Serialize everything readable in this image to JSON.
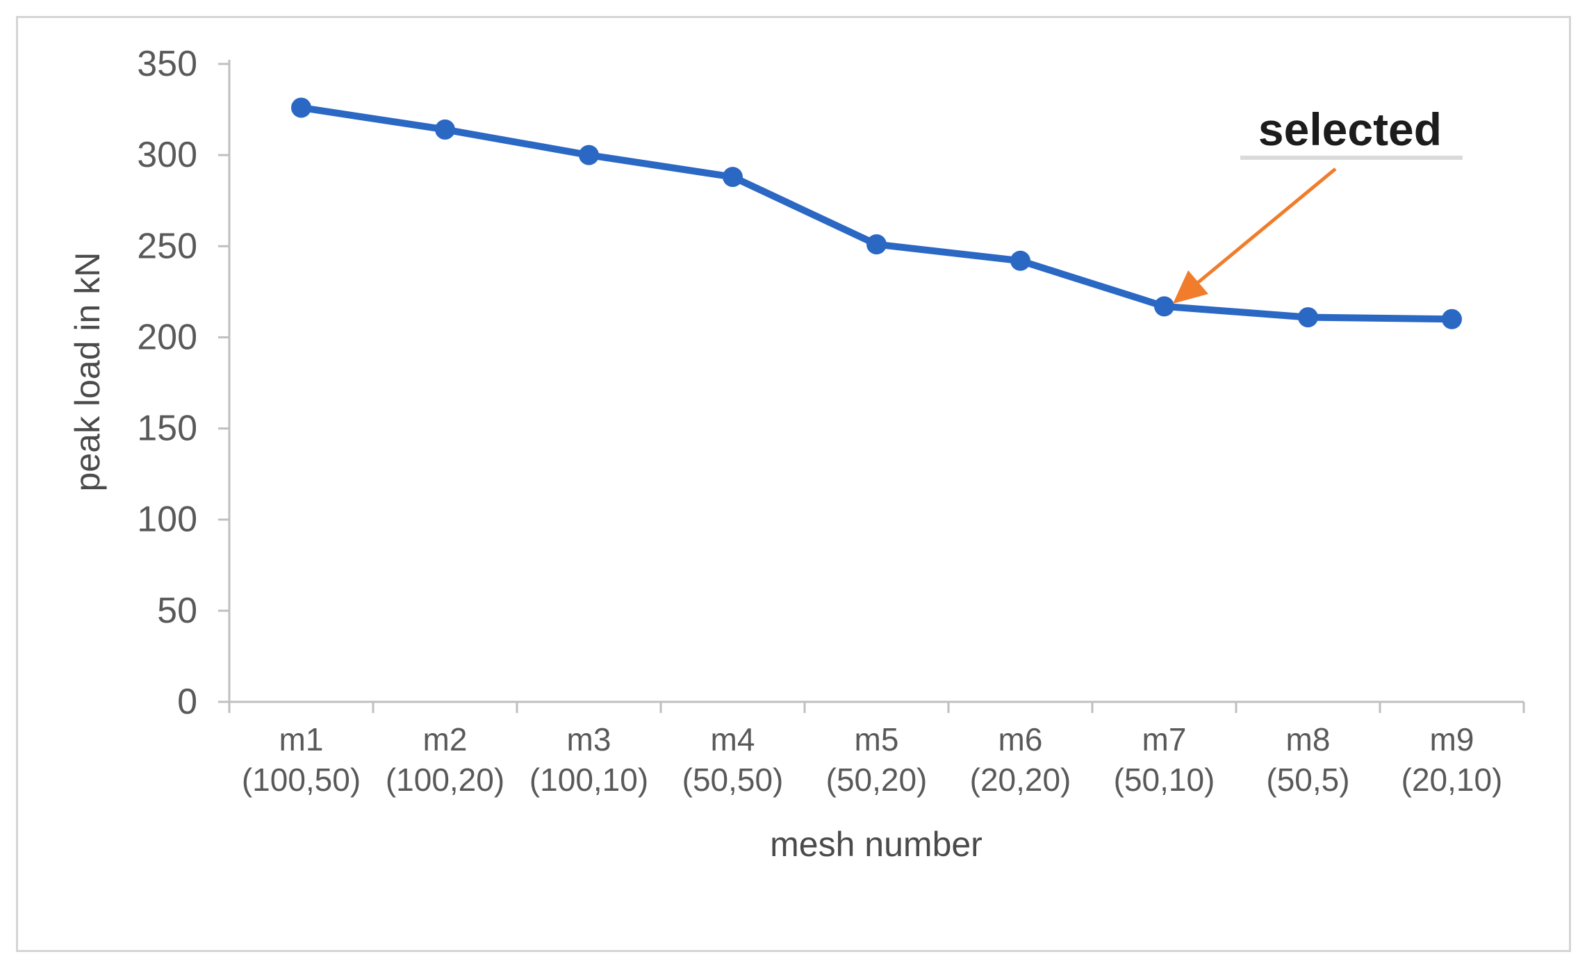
{
  "figure": {
    "background": "#ffffff",
    "border_color": "#d4d4d4"
  },
  "chart_data": {
    "type": "line",
    "title": "",
    "categories": [
      "m1",
      "m2",
      "m3",
      "m4",
      "m5",
      "m6",
      "m7",
      "m8",
      "m9"
    ],
    "category_sublabels": [
      "(100,50)",
      "(100,20)",
      "(100,10)",
      "(50,50)",
      "(50,20)",
      "(20,20)",
      "(50,10)",
      "(50,5)",
      "(20,10)"
    ],
    "values": [
      326,
      314,
      300,
      288,
      251,
      242,
      217,
      211,
      210
    ],
    "xlabel": "mesh number",
    "ylabel": "peak load in kN",
    "ylim": [
      0,
      350
    ],
    "yticks": [
      0,
      50,
      100,
      150,
      200,
      250,
      300,
      350
    ],
    "grid": false,
    "legend": "none",
    "line_color": "#2a68c4",
    "marker": "circle",
    "axis_color": "#bfbfbf",
    "tick_label_color": "#595959",
    "axis_title_color": "#4a4a4a",
    "annotation": {
      "label": "selected",
      "target_category": "m7",
      "text_color": "#1c1c1c",
      "underline_color": "#dadada",
      "arrow_color": "#f07c2c"
    }
  }
}
